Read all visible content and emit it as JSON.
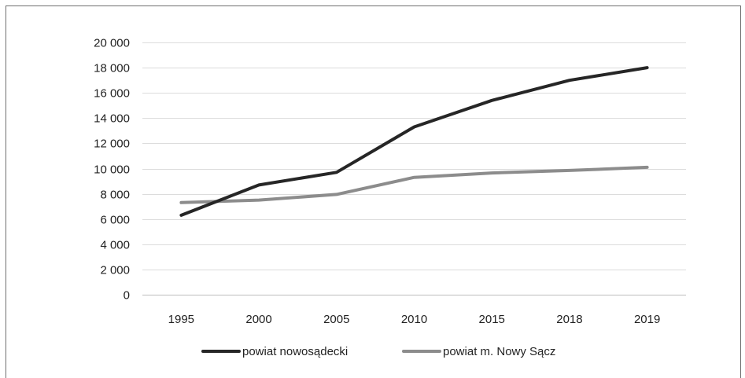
{
  "chart_data": {
    "type": "line",
    "title": "",
    "xlabel": "",
    "ylabel": "",
    "categories": [
      "1995",
      "2000",
      "2005",
      "2010",
      "2015",
      "2018",
      "2019"
    ],
    "ylim": [
      0,
      20000
    ],
    "yticks": [
      0,
      2000,
      4000,
      6000,
      8000,
      10000,
      12000,
      14000,
      16000,
      18000,
      20000
    ],
    "ytick_labels": [
      "0",
      "2 000",
      "4 000",
      "6 000",
      "8 000",
      "10 000",
      "12 000",
      "14 000",
      "16 000",
      "18 000",
      "20 000"
    ],
    "grid": true,
    "legend_position": "bottom",
    "series": [
      {
        "name": "powiat nowosądecki",
        "color": "#262626",
        "values": [
          6300,
          8700,
          9700,
          13300,
          15400,
          17000,
          18000
        ]
      },
      {
        "name": "powiat m. Nowy Sącz",
        "color": "#8c8c8c",
        "values": [
          7300,
          7500,
          7950,
          9300,
          9650,
          9850,
          10100
        ]
      }
    ]
  }
}
